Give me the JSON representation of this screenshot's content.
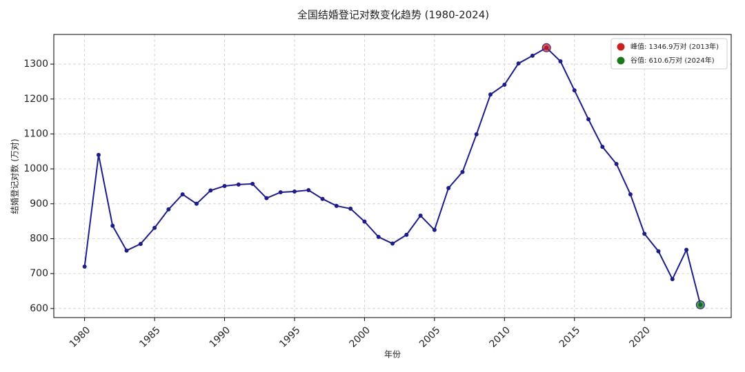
{
  "chart_data": {
    "type": "line",
    "title": "全国结婚登记对数变化趋势 (1980-2024)",
    "x_label": "年份",
    "y_label": "结婚登记对数 (万对)",
    "x": [
      1980,
      1981,
      1982,
      1983,
      1984,
      1985,
      1986,
      1987,
      1988,
      1989,
      1990,
      1991,
      1992,
      1993,
      1994,
      1995,
      1996,
      1997,
      1998,
      1999,
      2000,
      2001,
      2002,
      2003,
      2004,
      2005,
      2006,
      2007,
      2008,
      2009,
      2010,
      2011,
      2012,
      2013,
      2014,
      2015,
      2016,
      2017,
      2018,
      2019,
      2020,
      2021,
      2022,
      2023,
      2024
    ],
    "series": [
      {
        "color": "#1c1c8a",
        "values": [
          720,
          1040,
          837,
          766,
          785,
          831,
          884,
          927,
          900,
          938,
          951,
          955,
          957,
          916,
          933,
          935,
          939,
          914,
          894,
          886,
          849,
          805,
          786,
          811,
          866,
          825,
          945,
          991,
          1099,
          1213,
          1241,
          1302,
          1324,
          1346.9,
          1308,
          1225,
          1142,
          1063,
          1014,
          927,
          814,
          764,
          684,
          768,
          610.6
        ]
      }
    ],
    "highlights": [
      {
        "label": "峰值: 1346.9万对 (2013年)",
        "color": "#cc1f1f",
        "x": 2013,
        "value": 1346.9
      },
      {
        "label": "谷值: 610.6万对 (2024年)",
        "color": "#1a7a1a",
        "x": 2024,
        "value": 610.6
      }
    ],
    "xlim": [
      1977.8,
      2026.2
    ],
    "ylim": [
      574,
      1385
    ],
    "xticks": [
      1980,
      1985,
      1990,
      1995,
      2000,
      2005,
      2010,
      2015,
      2020
    ],
    "yticks": [
      600,
      700,
      800,
      900,
      1000,
      1100,
      1200,
      1300
    ],
    "grid": true,
    "legend": "upper right"
  }
}
